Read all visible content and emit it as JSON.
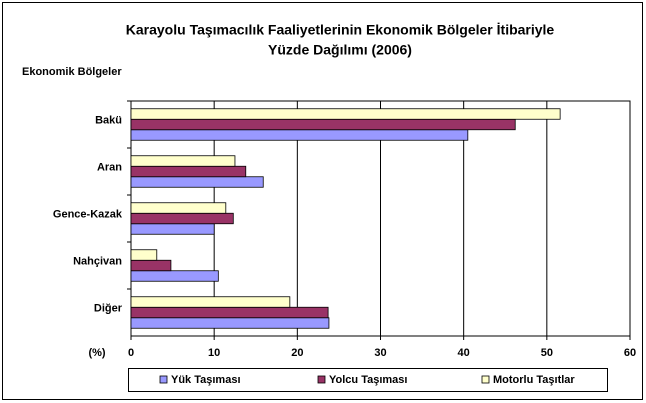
{
  "chart_data": {
    "type": "hbar",
    "title": [
      "Karayolu Taşımacılık Faaliyetlerinin Ekonomik Bölgeler İtibariyle",
      "Yüzde Dağılımı (2006)"
    ],
    "y_label": "Ekonomik Bölgeler",
    "x_label": "(%)",
    "categories": [
      "Bakü",
      "Aran",
      "Gence-Kazak",
      "Nahçivan",
      "Diğer"
    ],
    "series": [
      {
        "name": "Yük Taşıması",
        "color": "#9999ff",
        "values": [
          40.5,
          15.9,
          10.0,
          10.5,
          23.8
        ]
      },
      {
        "name": "Yolcu Taşıması",
        "color": "#993366",
        "values": [
          46.2,
          13.8,
          12.3,
          4.8,
          23.7
        ]
      },
      {
        "name": "Motorlu Taşıtlar",
        "color": "#ffffcc",
        "values": [
          51.6,
          12.5,
          11.4,
          3.1,
          19.1
        ]
      }
    ],
    "xlim": [
      0,
      60
    ],
    "xticks": [
      0,
      10,
      20,
      30,
      40,
      50,
      60
    ],
    "grid": true,
    "legend": "bottom"
  }
}
